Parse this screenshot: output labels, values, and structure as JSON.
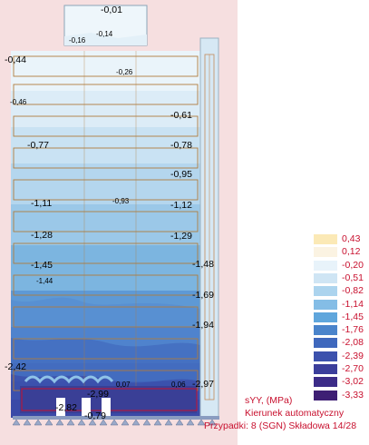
{
  "contour_labels": [
    {
      "text": "-0,01",
      "small": false
    },
    {
      "text": "-0,16",
      "small": true
    },
    {
      "text": "-0,14",
      "small": true
    },
    {
      "text": "-0,44",
      "small": false
    },
    {
      "text": "-0,26",
      "small": true
    },
    {
      "text": "-0,46",
      "small": true
    },
    {
      "text": "-0,61",
      "small": false
    },
    {
      "text": "-0,77",
      "small": false
    },
    {
      "text": "-0,78",
      "small": false
    },
    {
      "text": "-0,95",
      "small": false
    },
    {
      "text": "-1,11",
      "small": false
    },
    {
      "text": "-0,93",
      "small": true
    },
    {
      "text": "-1,12",
      "small": false
    },
    {
      "text": "-1,28",
      "small": false
    },
    {
      "text": "-1,29",
      "small": false
    },
    {
      "text": "-1,45",
      "small": false
    },
    {
      "text": "-1,48",
      "small": false
    },
    {
      "text": "-1,44",
      "small": true
    },
    {
      "text": "-1,69",
      "small": false
    },
    {
      "text": "-1,94",
      "small": false
    },
    {
      "text": "-2,42",
      "small": false
    },
    {
      "text": "0,07",
      "small": true
    },
    {
      "text": "0,06",
      "small": true
    },
    {
      "text": "-2,97",
      "small": false
    },
    {
      "text": "-2,99",
      "small": false
    },
    {
      "text": "-2,82",
      "small": false
    },
    {
      "text": "-0,79",
      "small": false
    }
  ],
  "legend": {
    "items": [
      {
        "value": "0,43",
        "color": "#fbe9b6"
      },
      {
        "value": "0,12",
        "color": "#fbf3e2"
      },
      {
        "value": "-0,20",
        "color": "#e8f3fa"
      },
      {
        "value": "-0,51",
        "color": "#cfe5f4"
      },
      {
        "value": "-0,82",
        "color": "#acd4ee"
      },
      {
        "value": "-1,14",
        "color": "#84bde6"
      },
      {
        "value": "-1,45",
        "color": "#5fa6dc"
      },
      {
        "value": "-1,76",
        "color": "#4a84cb"
      },
      {
        "value": "-2,08",
        "color": "#3f68bd"
      },
      {
        "value": "-2,39",
        "color": "#3c51ad"
      },
      {
        "value": "-2,70",
        "color": "#3b3e9b"
      },
      {
        "value": "-3,02",
        "color": "#3c2c88"
      },
      {
        "value": "-3,33",
        "color": "#3e1f74"
      }
    ]
  },
  "info": {
    "quantity": "sYY, (MPa)",
    "direction": "Kierunek automatyczny",
    "case": "Przypadki: 8 (SGN) Składowa 14/28"
  }
}
